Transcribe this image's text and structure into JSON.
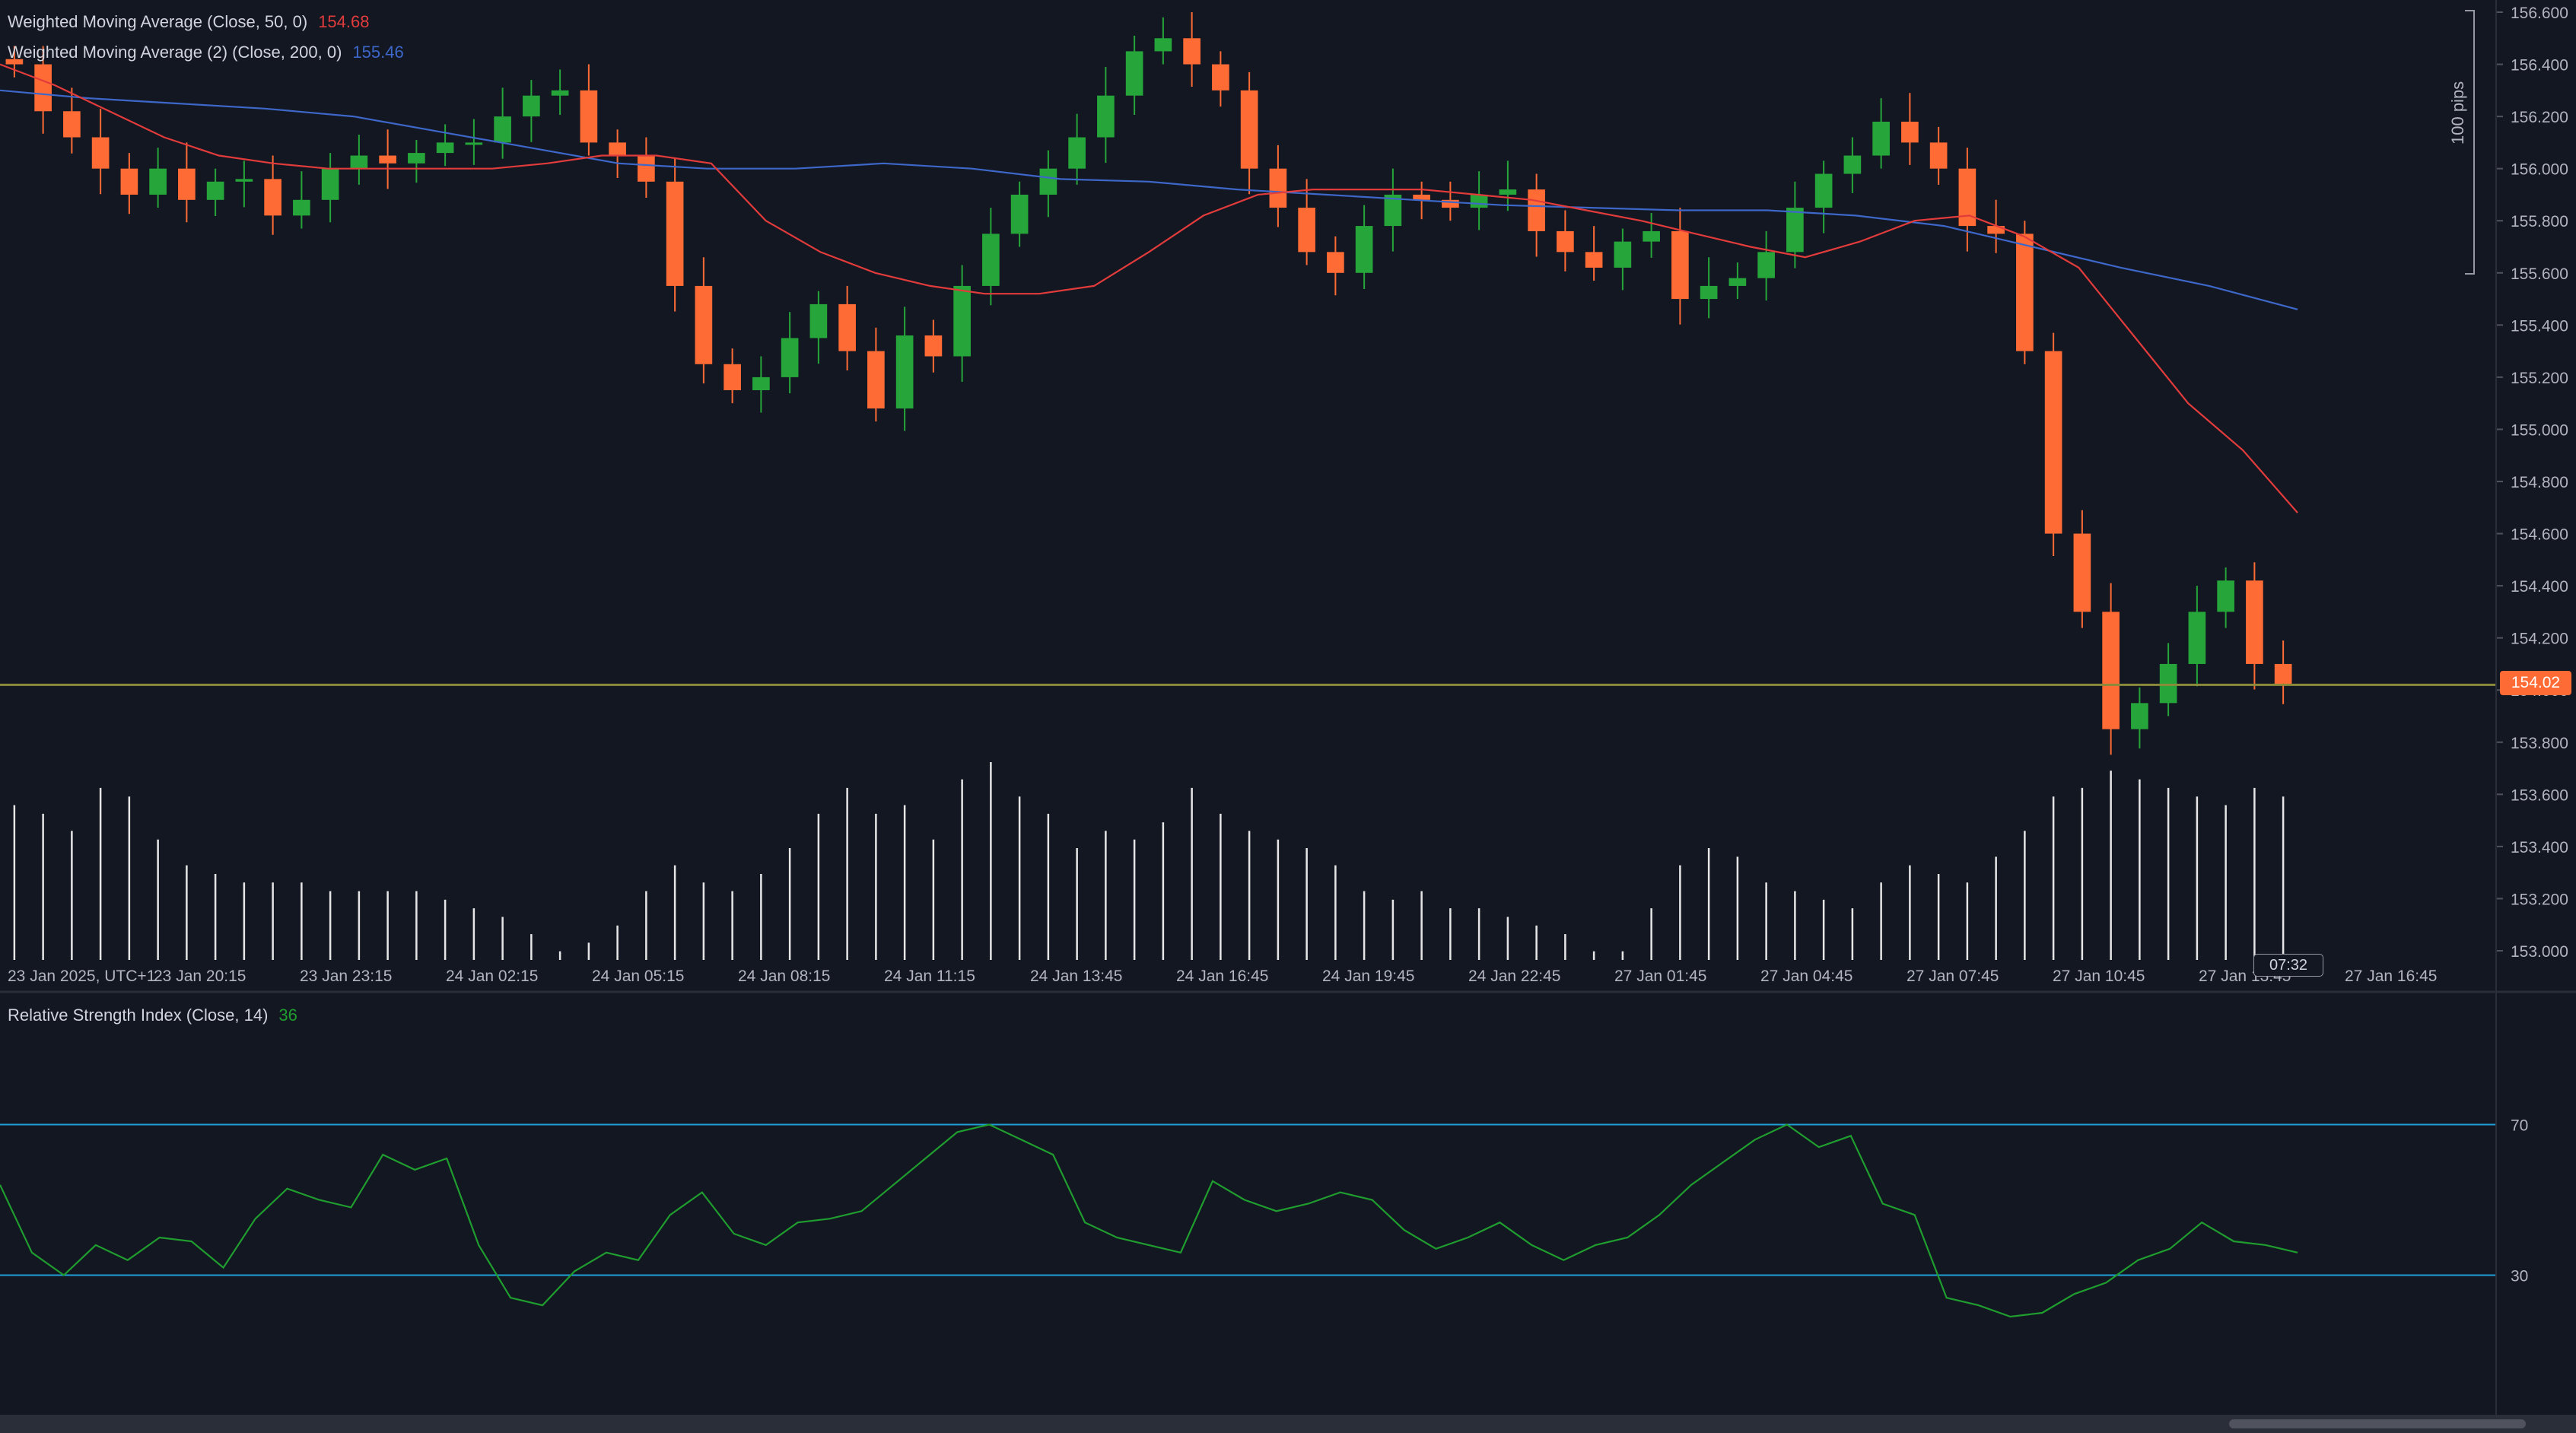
{
  "colors": {
    "background": "#131722",
    "up": "#26a63a",
    "down": "#ff6b35",
    "wma50": "#e23b3b",
    "wma200": "#3d67c9",
    "rsi": "#1f9d2e",
    "rsi_bands": "#1e9fd6",
    "price_line": "#8a8a3a",
    "volume": "#e6e6e6",
    "axis_text": "#b2b5be"
  },
  "legend": {
    "wma50": {
      "label": "Weighted Moving Average (Close, 50, 0)",
      "value": "154.68"
    },
    "wma200": {
      "label": "Weighted Moving Average (2) (Close, 200, 0)",
      "value": "155.46"
    },
    "rsi": {
      "label": "Relative Strength Index (Close, 14)",
      "value": "36"
    }
  },
  "last_price": "154.02",
  "time_label": "07:32",
  "range_label": "100 pips",
  "chart_data": [
    {
      "type": "candlestick",
      "ylim": [
        153.0,
        156.6
      ],
      "y_ticks": [
        "156.600",
        "156.400",
        "156.200",
        "156.000",
        "155.800",
        "155.600",
        "155.400",
        "155.200",
        "155.000",
        "154.800",
        "154.600",
        "154.400",
        "154.200",
        "154.000",
        "153.800",
        "153.600",
        "153.400",
        "153.200",
        "153.000"
      ],
      "x_labels": [
        "23 Jan 2025, UTC+1",
        "23 Jan 20:15",
        "23 Jan 23:15",
        "24 Jan 02:15",
        "24 Jan 05:15",
        "24 Jan 08:15",
        "24 Jan 11:15",
        "24 Jan 13:45",
        "24 Jan 16:45",
        "24 Jan 19:45",
        "24 Jan 22:45",
        "27 Jan 01:45",
        "27 Jan 04:45",
        "27 Jan 07:45",
        "27 Jan 10:45",
        "27 Jan 13:45",
        "27 Jan 16:45"
      ],
      "close_path": [
        156.4,
        156.22,
        156.12,
        156.0,
        155.9,
        156.0,
        155.88,
        155.95,
        155.96,
        155.82,
        155.88,
        156.0,
        156.05,
        156.02,
        156.06,
        156.1,
        156.1,
        156.2,
        156.28,
        156.3,
        156.1,
        156.05,
        155.95,
        155.55,
        155.25,
        155.15,
        155.2,
        155.35,
        155.48,
        155.3,
        155.08,
        155.36,
        155.28,
        155.55,
        155.75,
        155.9,
        156.0,
        156.12,
        156.28,
        156.45,
        156.5,
        156.4,
        156.3,
        156.0,
        155.85,
        155.68,
        155.6,
        155.78,
        155.9,
        155.88,
        155.85,
        155.9,
        155.92,
        155.76,
        155.68,
        155.62,
        155.72,
        155.76,
        155.5,
        155.55,
        155.58,
        155.68,
        155.85,
        155.98,
        156.05,
        156.18,
        156.1,
        156.0,
        155.78,
        155.75,
        155.3,
        154.6,
        154.3,
        153.85,
        153.95,
        154.1,
        154.3,
        154.42,
        154.1,
        154.02
      ],
      "wma50_path": [
        156.4,
        156.32,
        156.22,
        156.12,
        156.05,
        156.02,
        156.0,
        156.0,
        156.0,
        156.0,
        156.02,
        156.05,
        156.05,
        156.02,
        155.8,
        155.68,
        155.6,
        155.55,
        155.52,
        155.52,
        155.55,
        155.68,
        155.82,
        155.9,
        155.92,
        155.92,
        155.92,
        155.9,
        155.88,
        155.84,
        155.8,
        155.75,
        155.7,
        155.66,
        155.72,
        155.8,
        155.82,
        155.74,
        155.62,
        155.36,
        155.1,
        154.92,
        154.68
      ],
      "wma200_path": [
        156.3,
        156.27,
        156.25,
        156.23,
        156.2,
        156.14,
        156.08,
        156.02,
        156.0,
        156.0,
        156.02,
        156.0,
        155.96,
        155.95,
        155.92,
        155.9,
        155.88,
        155.86,
        155.85,
        155.84,
        155.84,
        155.82,
        155.78,
        155.7,
        155.62,
        155.55,
        155.46
      ]
    },
    {
      "type": "bar",
      "series_name": "Volume",
      "values": [
        0.9,
        0.85,
        0.75,
        1.0,
        0.95,
        0.7,
        0.55,
        0.5,
        0.45,
        0.45,
        0.45,
        0.4,
        0.4,
        0.4,
        0.4,
        0.35,
        0.3,
        0.25,
        0.15,
        0.05,
        0.1,
        0.2,
        0.4,
        0.55,
        0.45,
        0.4,
        0.5,
        0.65,
        0.85,
        1.0,
        0.85,
        0.9,
        0.7,
        1.05,
        1.15,
        0.95,
        0.85,
        0.65,
        0.75,
        0.7,
        0.8,
        1.0,
        0.85,
        0.75,
        0.7,
        0.65,
        0.55,
        0.4,
        0.35,
        0.4,
        0.3,
        0.3,
        0.25,
        0.2,
        0.15,
        0.05,
        0.05,
        0.3,
        0.55,
        0.65,
        0.6,
        0.45,
        0.4,
        0.35,
        0.3,
        0.45,
        0.55,
        0.5,
        0.45,
        0.6,
        0.75,
        0.95,
        1.0,
        1.1,
        1.05,
        1.0,
        0.95,
        0.9,
        1.0,
        0.95
      ]
    },
    {
      "type": "line",
      "series_name": "RSI",
      "ylim": [
        0,
        100
      ],
      "bands": [
        70,
        30
      ],
      "values": [
        54,
        36,
        30,
        38,
        34,
        40,
        39,
        32,
        45,
        53,
        50,
        48,
        62,
        58,
        61,
        38,
        24,
        22,
        31,
        36,
        34,
        46,
        52,
        41,
        38,
        44,
        45,
        47,
        54,
        61,
        68,
        70,
        66,
        62,
        44,
        40,
        38,
        36,
        55,
        50,
        47,
        49,
        52,
        50,
        42,
        37,
        40,
        44,
        38,
        34,
        38,
        40,
        46,
        54,
        60,
        66,
        70,
        64,
        67,
        49,
        46,
        24,
        22,
        19,
        20,
        25,
        28,
        34,
        37,
        44,
        39,
        38,
        36
      ]
    }
  ]
}
